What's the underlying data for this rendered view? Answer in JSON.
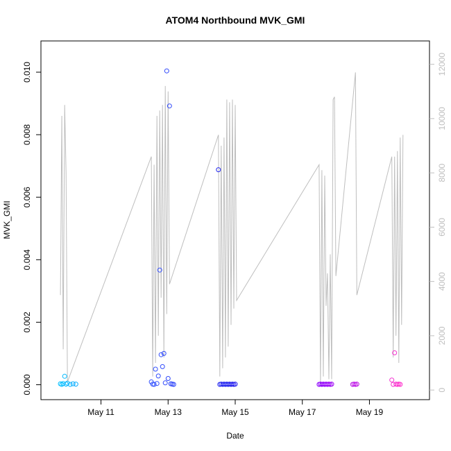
{
  "chart_data": {
    "type": "scatter",
    "title": "ATOM4 Northbound MVK_GMI",
    "xlabel": "Date",
    "ylabel": "MVK_GMI",
    "xlim": [
      "2016-05-09T12:00",
      "2016-05-20T12:00"
    ],
    "ylim": [
      -0.0003,
      0.0106
    ],
    "x_ticks": [
      {
        "value": "2016-05-11",
        "label": "May 11"
      },
      {
        "value": "2016-05-13",
        "label": "May 13"
      },
      {
        "value": "2016-05-15",
        "label": "May 15"
      },
      {
        "value": "2016-05-17",
        "label": "May 17"
      },
      {
        "value": "2016-05-19",
        "label": "May 19"
      }
    ],
    "y_ticks": [
      "0.000",
      "0.002",
      "0.004",
      "0.006",
      "0.008",
      "0.010"
    ],
    "y2_ticks": [
      "0",
      "2000",
      "4000",
      "6000",
      "8000",
      "10000",
      "12000"
    ],
    "y2lim": [
      -150,
      12400
    ],
    "grid": false,
    "series": [
      {
        "name": "",
        "kind": "points",
        "color_gradient": [
          "#00bfff",
          "#3355ff",
          "#2222ee",
          "#8800ff",
          "#ff33cc"
        ],
        "points": [
          [
            "2016-05-09T19:00",
            3e-05
          ],
          [
            "2016-05-09T20:00",
            1e-05
          ],
          [
            "2016-05-09T21:00",
            4e-05
          ],
          [
            "2016-05-09T22:00",
            0.00027
          ],
          [
            "2016-05-09T23:00",
            2e-05
          ],
          [
            "2016-05-10T00:00",
            5e-05
          ],
          [
            "2016-05-10T02:00",
            1e-05
          ],
          [
            "2016-05-10T04:00",
            3e-05
          ],
          [
            "2016-05-10T06:00",
            2e-05
          ],
          [
            "2016-05-12T12:00",
            9e-05
          ],
          [
            "2016-05-12T13:00",
            2e-05
          ],
          [
            "2016-05-12T14:00",
            1e-05
          ],
          [
            "2016-05-12T15:00",
            0.0005
          ],
          [
            "2016-05-12T16:00",
            4e-05
          ],
          [
            "2016-05-12T17:00",
            0.00028
          ],
          [
            "2016-05-12T18:00",
            0.00367
          ],
          [
            "2016-05-12T19:00",
            0.00096
          ],
          [
            "2016-05-12T20:00",
            0.00058
          ],
          [
            "2016-05-12T21:00",
            0.001
          ],
          [
            "2016-05-12T22:00",
            6e-05
          ],
          [
            "2016-05-12T23:00",
            0.01004
          ],
          [
            "2016-05-13T00:00",
            0.0002
          ],
          [
            "2016-05-13T01:00",
            0.00892
          ],
          [
            "2016-05-13T02:00",
            3e-05
          ],
          [
            "2016-05-13T03:00",
            2e-05
          ],
          [
            "2016-05-13T04:00",
            1e-05
          ],
          [
            "2016-05-14T12:00",
            0.00688
          ],
          [
            "2016-05-14T13:00",
            1e-05
          ],
          [
            "2016-05-14T14:00",
            2e-05
          ],
          [
            "2016-05-14T15:00",
            1e-05
          ],
          [
            "2016-05-14T16:00",
            2e-05
          ],
          [
            "2016-05-14T17:00",
            1e-05
          ],
          [
            "2016-05-14T18:00",
            2e-05
          ],
          [
            "2016-05-14T19:00",
            1e-05
          ],
          [
            "2016-05-14T20:00",
            2e-05
          ],
          [
            "2016-05-14T21:00",
            1e-05
          ],
          [
            "2016-05-14T22:00",
            2e-05
          ],
          [
            "2016-05-14T23:00",
            1e-05
          ],
          [
            "2016-05-15T00:00",
            2e-05
          ],
          [
            "2016-05-17T12:00",
            1e-05
          ],
          [
            "2016-05-17T13:00",
            2e-05
          ],
          [
            "2016-05-17T14:00",
            1e-05
          ],
          [
            "2016-05-17T15:00",
            2e-05
          ],
          [
            "2016-05-17T16:00",
            1e-05
          ],
          [
            "2016-05-17T17:00",
            2e-05
          ],
          [
            "2016-05-17T18:00",
            1e-05
          ],
          [
            "2016-05-17T19:00",
            2e-05
          ],
          [
            "2016-05-17T20:00",
            1e-05
          ],
          [
            "2016-05-17T21:00",
            2e-05
          ],
          [
            "2016-05-18T12:00",
            1e-05
          ],
          [
            "2016-05-18T13:00",
            2e-05
          ],
          [
            "2016-05-18T14:00",
            1e-05
          ],
          [
            "2016-05-18T15:00",
            2e-05
          ],
          [
            "2016-05-19T16:00",
            0.00015
          ],
          [
            "2016-05-19T17:00",
            1e-05
          ],
          [
            "2016-05-19T18:00",
            0.00102
          ],
          [
            "2016-05-19T19:00",
            2e-05
          ],
          [
            "2016-05-19T20:00",
            1e-05
          ],
          [
            "2016-05-19T21:00",
            2e-05
          ],
          [
            "2016-05-19T22:00",
            1e-05
          ]
        ]
      },
      {
        "name": "",
        "kind": "line",
        "axis": "right",
        "color": "#bebebe",
        "points": [
          [
            "2016-05-09T19:00",
            3500
          ],
          [
            "2016-05-09T20:00",
            10100
          ],
          [
            "2016-05-09T21:00",
            1500
          ],
          [
            "2016-05-09T22:00",
            10500
          ],
          [
            "2016-05-09T23:00",
            8000
          ],
          [
            "2016-05-10T00:00",
            300
          ],
          [
            "2016-05-12T12:00",
            8600
          ],
          [
            "2016-05-12T13:00",
            500
          ],
          [
            "2016-05-12T14:00",
            8300
          ],
          [
            "2016-05-12T15:00",
            1000
          ],
          [
            "2016-05-12T16:00",
            10100
          ],
          [
            "2016-05-12T17:00",
            2000
          ],
          [
            "2016-05-12T18:00",
            10300
          ],
          [
            "2016-05-12T19:00",
            3400
          ],
          [
            "2016-05-12T20:00",
            10500
          ],
          [
            "2016-05-12T21:00",
            1200
          ],
          [
            "2016-05-12T22:00",
            11200
          ],
          [
            "2016-05-12T23:00",
            2800
          ],
          [
            "2016-05-13T00:00",
            11000
          ],
          [
            "2016-05-13T01:00",
            3900
          ],
          [
            "2016-05-14T12:00",
            9400
          ],
          [
            "2016-05-14T13:00",
            500
          ],
          [
            "2016-05-14T14:00",
            9000
          ],
          [
            "2016-05-14T15:00",
            800
          ],
          [
            "2016-05-14T16:00",
            9300
          ],
          [
            "2016-05-14T17:00",
            1200
          ],
          [
            "2016-05-14T18:00",
            10700
          ],
          [
            "2016-05-14T19:00",
            1600
          ],
          [
            "2016-05-14T20:00",
            10600
          ],
          [
            "2016-05-14T21:00",
            2400
          ],
          [
            "2016-05-14T22:00",
            10700
          ],
          [
            "2016-05-14T23:00",
            3000
          ],
          [
            "2016-05-15T00:00",
            10500
          ],
          [
            "2016-05-15T01:00",
            3300
          ],
          [
            "2016-05-17T12:00",
            8300
          ],
          [
            "2016-05-17T13:00",
            200
          ],
          [
            "2016-05-17T14:00",
            8100
          ],
          [
            "2016-05-17T15:00",
            500
          ],
          [
            "2016-05-17T16:00",
            7900
          ],
          [
            "2016-05-17T17:00",
            3100
          ],
          [
            "2016-05-17T18:00",
            4300
          ],
          [
            "2016-05-17T19:00",
            400
          ],
          [
            "2016-05-17T20:00",
            5000
          ],
          [
            "2016-05-17T21:00",
            400
          ],
          [
            "2016-05-17T22:00",
            10700
          ],
          [
            "2016-05-17T23:00",
            10800
          ],
          [
            "2016-05-18T00:00",
            4200
          ],
          [
            "2016-05-18T14:00",
            11700
          ],
          [
            "2016-05-18T15:00",
            3500
          ],
          [
            "2016-05-19T16:00",
            8600
          ],
          [
            "2016-05-19T17:00",
            1200
          ],
          [
            "2016-05-19T18:00",
            8600
          ],
          [
            "2016-05-19T19:00",
            2000
          ],
          [
            "2016-05-19T20:00",
            8800
          ],
          [
            "2016-05-19T21:00",
            1000
          ],
          [
            "2016-05-19T22:00",
            9300
          ],
          [
            "2016-05-19T23:00",
            2400
          ],
          [
            "2016-05-20T00:00",
            9400
          ]
        ]
      }
    ]
  }
}
